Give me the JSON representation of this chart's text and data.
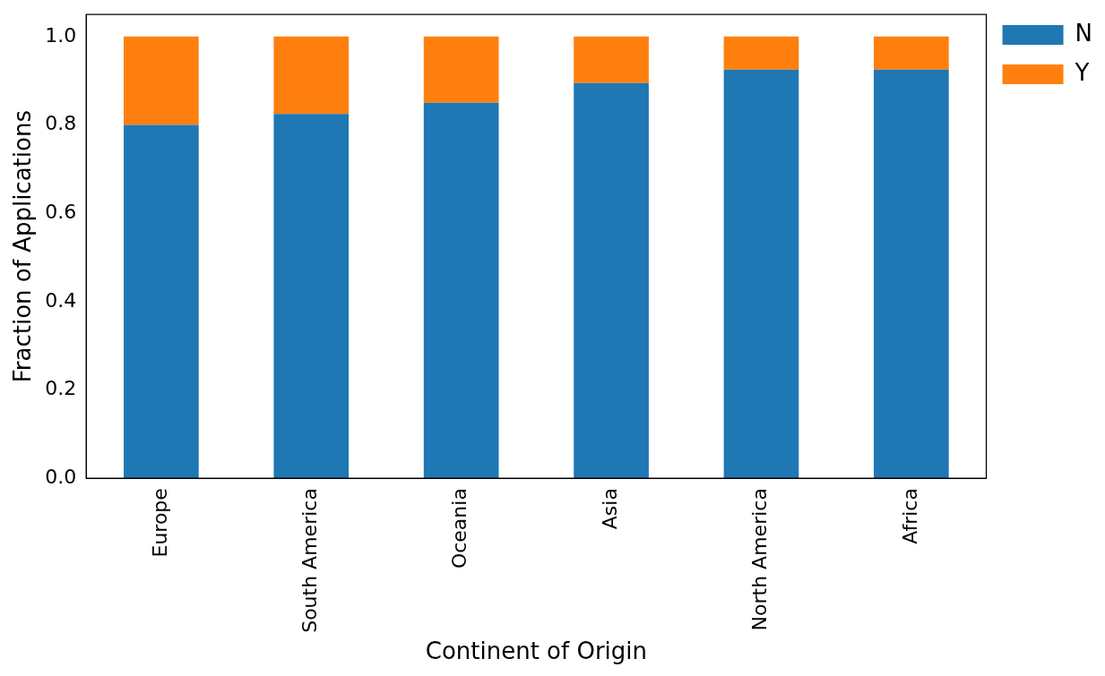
{
  "chart_data": {
    "type": "bar",
    "stacked": true,
    "xlabel": "Continent of Origin",
    "ylabel": "Fraction of Applications",
    "categories": [
      "Europe",
      "South America",
      "Oceania",
      "Asia",
      "North America",
      "Africa"
    ],
    "series": [
      {
        "name": "N",
        "color": "#1f77b4",
        "values": [
          0.8,
          0.825,
          0.85,
          0.895,
          0.925,
          0.925
        ]
      },
      {
        "name": "Y",
        "color": "#ff7f0e",
        "values": [
          0.2,
          0.175,
          0.15,
          0.105,
          0.075,
          0.075
        ]
      }
    ],
    "ylim": [
      0,
      1.05
    ],
    "yticks": [
      {
        "value": 0,
        "label": "0.0"
      },
      {
        "value": 0.2,
        "label": "0.2"
      },
      {
        "value": 0.4,
        "label": "0.4"
      },
      {
        "value": 0.6,
        "label": "0.6"
      },
      {
        "value": 0.8,
        "label": "0.8"
      },
      {
        "value": 1,
        "label": "1.0"
      }
    ],
    "grid": false,
    "legend": "top right"
  }
}
